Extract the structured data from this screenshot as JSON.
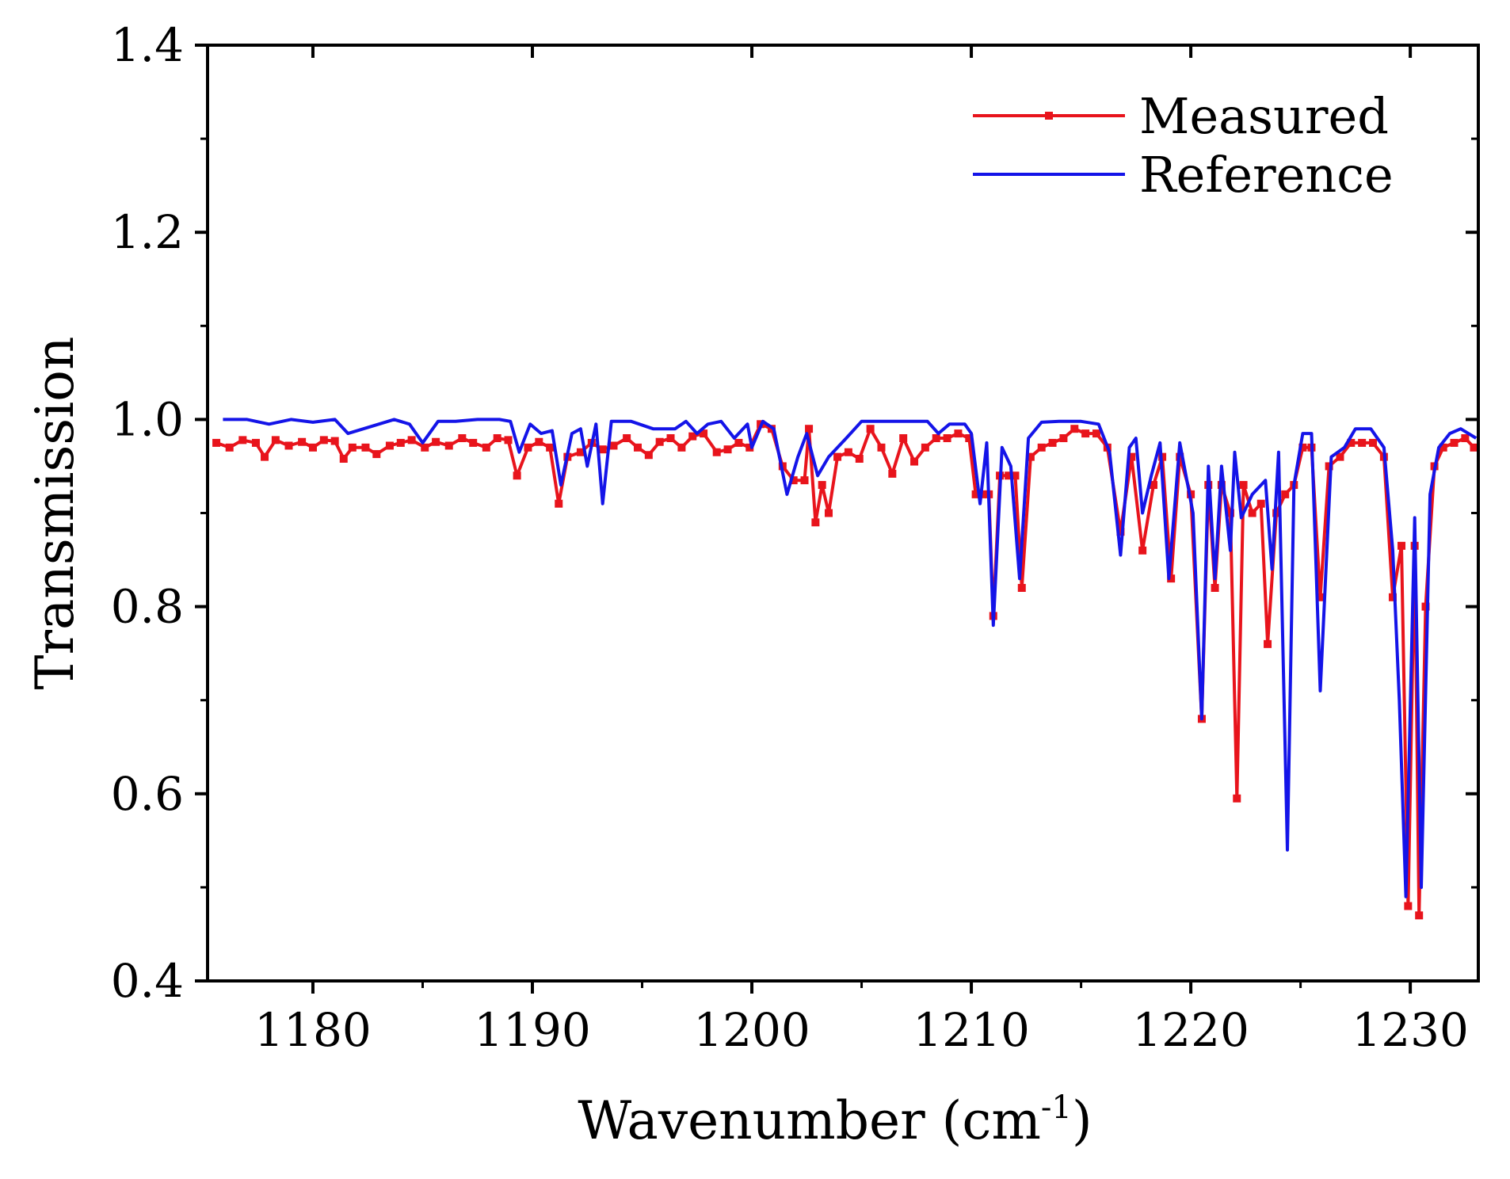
{
  "chart_data": {
    "type": "line",
    "title": "",
    "xlabel": "Wavenumber (cm",
    "xlabel_superscript": "-1",
    "xlabel_suffix": ")",
    "ylabel": "Transmission",
    "xlim": [
      1175.2,
      1233.1
    ],
    "ylim": [
      0.4,
      1.4
    ],
    "x_ticks": [
      1180,
      1190,
      1200,
      1210,
      1220,
      1230
    ],
    "x_tick_labels": [
      "1180",
      "1190",
      "1200",
      "1210",
      "1220",
      "1230"
    ],
    "y_ticks": [
      0.4,
      0.6,
      0.8,
      1.0,
      1.2,
      1.4
    ],
    "y_tick_labels": [
      "0.4",
      "0.6",
      "0.8",
      "1.0",
      "1.2",
      "1.4"
    ],
    "grid": false,
    "legend_position": "top-right",
    "series": [
      {
        "name": "Measured",
        "color": "#e8141c",
        "marker": "square",
        "points": [
          [
            1175.6,
            0.975
          ],
          [
            1176.2,
            0.97
          ],
          [
            1176.8,
            0.978
          ],
          [
            1177.4,
            0.975
          ],
          [
            1177.8,
            0.96
          ],
          [
            1178.3,
            0.978
          ],
          [
            1178.9,
            0.972
          ],
          [
            1179.5,
            0.976
          ],
          [
            1180.0,
            0.97
          ],
          [
            1180.5,
            0.978
          ],
          [
            1181.0,
            0.977
          ],
          [
            1181.4,
            0.958
          ],
          [
            1181.8,
            0.97
          ],
          [
            1182.4,
            0.97
          ],
          [
            1182.9,
            0.963
          ],
          [
            1183.5,
            0.972
          ],
          [
            1184.0,
            0.975
          ],
          [
            1184.5,
            0.978
          ],
          [
            1185.1,
            0.97
          ],
          [
            1185.6,
            0.976
          ],
          [
            1186.2,
            0.972
          ],
          [
            1186.8,
            0.98
          ],
          [
            1187.3,
            0.975
          ],
          [
            1187.9,
            0.97
          ],
          [
            1188.4,
            0.98
          ],
          [
            1188.9,
            0.978
          ],
          [
            1189.3,
            0.94
          ],
          [
            1189.8,
            0.97
          ],
          [
            1190.3,
            0.976
          ],
          [
            1190.8,
            0.97
          ],
          [
            1191.2,
            0.91
          ],
          [
            1191.6,
            0.96
          ],
          [
            1192.2,
            0.965
          ],
          [
            1192.7,
            0.975
          ],
          [
            1193.2,
            0.968
          ],
          [
            1193.7,
            0.972
          ],
          [
            1194.3,
            0.98
          ],
          [
            1194.8,
            0.97
          ],
          [
            1195.3,
            0.962
          ],
          [
            1195.8,
            0.976
          ],
          [
            1196.3,
            0.98
          ],
          [
            1196.8,
            0.97
          ],
          [
            1197.3,
            0.982
          ],
          [
            1197.8,
            0.985
          ],
          [
            1198.4,
            0.965
          ],
          [
            1198.9,
            0.968
          ],
          [
            1199.4,
            0.975
          ],
          [
            1199.9,
            0.97
          ],
          [
            1200.4,
            0.995
          ],
          [
            1200.9,
            0.99
          ],
          [
            1201.4,
            0.95
          ],
          [
            1201.9,
            0.935
          ],
          [
            1202.4,
            0.935
          ],
          [
            1202.6,
            0.99
          ],
          [
            1202.9,
            0.89
          ],
          [
            1203.2,
            0.93
          ],
          [
            1203.5,
            0.9
          ],
          [
            1203.9,
            0.96
          ],
          [
            1204.4,
            0.965
          ],
          [
            1204.9,
            0.958
          ],
          [
            1205.4,
            0.99
          ],
          [
            1205.9,
            0.97
          ],
          [
            1206.4,
            0.942
          ],
          [
            1206.9,
            0.98
          ],
          [
            1207.4,
            0.955
          ],
          [
            1207.9,
            0.97
          ],
          [
            1208.4,
            0.98
          ],
          [
            1208.9,
            0.98
          ],
          [
            1209.4,
            0.985
          ],
          [
            1209.9,
            0.98
          ],
          [
            1210.2,
            0.92
          ],
          [
            1210.5,
            0.92
          ],
          [
            1210.8,
            0.92
          ],
          [
            1211.0,
            0.79
          ],
          [
            1211.3,
            0.94
          ],
          [
            1211.7,
            0.94
          ],
          [
            1212.0,
            0.94
          ],
          [
            1212.3,
            0.82
          ],
          [
            1212.7,
            0.96
          ],
          [
            1213.2,
            0.97
          ],
          [
            1213.7,
            0.975
          ],
          [
            1214.2,
            0.98
          ],
          [
            1214.7,
            0.99
          ],
          [
            1215.2,
            0.985
          ],
          [
            1215.7,
            0.985
          ],
          [
            1216.2,
            0.97
          ],
          [
            1216.8,
            0.88
          ],
          [
            1217.3,
            0.96
          ],
          [
            1217.8,
            0.86
          ],
          [
            1218.3,
            0.93
          ],
          [
            1218.7,
            0.96
          ],
          [
            1219.1,
            0.83
          ],
          [
            1219.5,
            0.96
          ],
          [
            1220.0,
            0.92
          ],
          [
            1220.5,
            0.68
          ],
          [
            1220.8,
            0.93
          ],
          [
            1221.1,
            0.82
          ],
          [
            1221.4,
            0.93
          ],
          [
            1221.8,
            0.9
          ],
          [
            1222.1,
            0.595
          ],
          [
            1222.4,
            0.93
          ],
          [
            1222.8,
            0.9
          ],
          [
            1223.2,
            0.91
          ],
          [
            1223.5,
            0.76
          ],
          [
            1223.9,
            0.9
          ],
          [
            1224.3,
            0.92
          ],
          [
            1224.7,
            0.93
          ],
          [
            1225.1,
            0.97
          ],
          [
            1225.5,
            0.97
          ],
          [
            1225.9,
            0.81
          ],
          [
            1226.3,
            0.95
          ],
          [
            1226.8,
            0.96
          ],
          [
            1227.3,
            0.975
          ],
          [
            1227.8,
            0.975
          ],
          [
            1228.3,
            0.975
          ],
          [
            1228.8,
            0.96
          ],
          [
            1229.2,
            0.81
          ],
          [
            1229.6,
            0.865
          ],
          [
            1229.9,
            0.48
          ],
          [
            1230.2,
            0.865
          ],
          [
            1230.4,
            0.47
          ],
          [
            1230.7,
            0.8
          ],
          [
            1231.1,
            0.95
          ],
          [
            1231.5,
            0.97
          ],
          [
            1232.0,
            0.975
          ],
          [
            1232.5,
            0.98
          ],
          [
            1232.9,
            0.97
          ]
        ]
      },
      {
        "name": "Reference",
        "color": "#1414e8",
        "marker": "none",
        "points": [
          [
            1175.9,
            1.0
          ],
          [
            1177.0,
            1.0
          ],
          [
            1178.0,
            0.995
          ],
          [
            1179.0,
            1.0
          ],
          [
            1180.0,
            0.997
          ],
          [
            1181.0,
            1.0
          ],
          [
            1181.6,
            0.985
          ],
          [
            1182.3,
            0.99
          ],
          [
            1183.0,
            0.995
          ],
          [
            1183.7,
            1.0
          ],
          [
            1184.4,
            0.995
          ],
          [
            1185.0,
            0.975
          ],
          [
            1185.7,
            0.998
          ],
          [
            1186.5,
            0.998
          ],
          [
            1187.5,
            1.0
          ],
          [
            1188.5,
            1.0
          ],
          [
            1189.0,
            0.998
          ],
          [
            1189.4,
            0.965
          ],
          [
            1189.9,
            0.995
          ],
          [
            1190.4,
            0.985
          ],
          [
            1190.9,
            0.988
          ],
          [
            1191.3,
            0.93
          ],
          [
            1191.8,
            0.985
          ],
          [
            1192.2,
            0.99
          ],
          [
            1192.5,
            0.95
          ],
          [
            1192.9,
            0.995
          ],
          [
            1193.2,
            0.91
          ],
          [
            1193.6,
            0.998
          ],
          [
            1194.5,
            0.998
          ],
          [
            1195.5,
            0.99
          ],
          [
            1196.5,
            0.99
          ],
          [
            1197.0,
            0.998
          ],
          [
            1197.5,
            0.985
          ],
          [
            1198.0,
            0.995
          ],
          [
            1198.6,
            0.998
          ],
          [
            1199.2,
            0.98
          ],
          [
            1199.8,
            0.995
          ],
          [
            1200.0,
            0.97
          ],
          [
            1200.5,
            0.998
          ],
          [
            1201.0,
            0.99
          ],
          [
            1201.6,
            0.92
          ],
          [
            1202.1,
            0.96
          ],
          [
            1202.5,
            0.985
          ],
          [
            1203.0,
            0.94
          ],
          [
            1203.5,
            0.96
          ],
          [
            1204.3,
            0.98
          ],
          [
            1205.0,
            0.998
          ],
          [
            1206.0,
            0.998
          ],
          [
            1207.0,
            0.998
          ],
          [
            1208.0,
            0.998
          ],
          [
            1208.5,
            0.985
          ],
          [
            1209.0,
            0.995
          ],
          [
            1209.7,
            0.995
          ],
          [
            1210.0,
            0.985
          ],
          [
            1210.4,
            0.91
          ],
          [
            1210.7,
            0.975
          ],
          [
            1211.0,
            0.78
          ],
          [
            1211.4,
            0.97
          ],
          [
            1211.8,
            0.95
          ],
          [
            1212.2,
            0.83
          ],
          [
            1212.6,
            0.98
          ],
          [
            1213.2,
            0.997
          ],
          [
            1214.0,
            0.998
          ],
          [
            1215.0,
            0.998
          ],
          [
            1215.8,
            0.995
          ],
          [
            1216.3,
            0.965
          ],
          [
            1216.8,
            0.855
          ],
          [
            1217.2,
            0.97
          ],
          [
            1217.5,
            0.98
          ],
          [
            1217.8,
            0.9
          ],
          [
            1218.2,
            0.94
          ],
          [
            1218.6,
            0.975
          ],
          [
            1219.0,
            0.83
          ],
          [
            1219.5,
            0.975
          ],
          [
            1220.1,
            0.9
          ],
          [
            1220.5,
            0.68
          ],
          [
            1220.8,
            0.95
          ],
          [
            1221.1,
            0.83
          ],
          [
            1221.4,
            0.95
          ],
          [
            1221.8,
            0.86
          ],
          [
            1222.0,
            0.965
          ],
          [
            1222.3,
            0.895
          ],
          [
            1222.8,
            0.92
          ],
          [
            1223.4,
            0.935
          ],
          [
            1223.7,
            0.84
          ],
          [
            1224.0,
            0.965
          ],
          [
            1224.4,
            0.54
          ],
          [
            1224.7,
            0.93
          ],
          [
            1225.1,
            0.985
          ],
          [
            1225.5,
            0.985
          ],
          [
            1225.9,
            0.71
          ],
          [
            1226.4,
            0.96
          ],
          [
            1227.0,
            0.97
          ],
          [
            1227.5,
            0.99
          ],
          [
            1228.2,
            0.99
          ],
          [
            1228.8,
            0.97
          ],
          [
            1229.2,
            0.86
          ],
          [
            1229.5,
            0.7
          ],
          [
            1229.8,
            0.49
          ],
          [
            1230.2,
            0.895
          ],
          [
            1230.5,
            0.5
          ],
          [
            1230.9,
            0.92
          ],
          [
            1231.3,
            0.97
          ],
          [
            1231.8,
            0.985
          ],
          [
            1232.3,
            0.99
          ],
          [
            1233.0,
            0.98
          ]
        ]
      }
    ]
  }
}
